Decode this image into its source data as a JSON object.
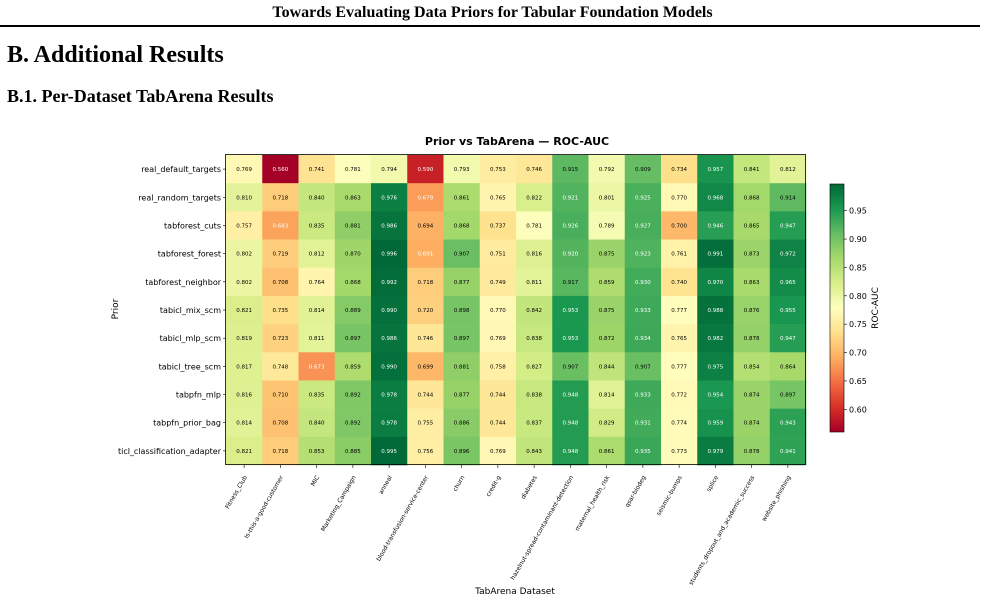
{
  "page": {
    "running_header": "Towards Evaluating Data Priors for Tabular Foundation Models",
    "section_title": "B. Additional Results",
    "subsection_title": "B.1. Per-Dataset TabArena Results"
  },
  "chart_data": {
    "type": "heatmap",
    "title": "Prior vs TabArena — ROC-AUC",
    "xlabel": "TabArena Dataset",
    "ylabel": "Prior",
    "colorbar_label": "ROC-AUC",
    "colormap": "RdYlGn",
    "vmin": 0.56,
    "vmax": 0.997,
    "colorbar_ticks": [
      "0.60",
      "0.65",
      "0.70",
      "0.75",
      "0.80",
      "0.85",
      "0.90",
      "0.95"
    ],
    "rows": [
      "real_default_targets",
      "real_random_targets",
      "tabforest_cuts",
      "tabforest_forest",
      "tabforest_neighbor",
      "tabicl_mix_scm",
      "tabicl_mlp_scm",
      "tabicl_tree_scm",
      "tabpfn_mlp",
      "tabpfn_prior_bag",
      "ticl_classification_adapter"
    ],
    "columns": [
      "Fitness_Club",
      "Is-this-a-good-customer",
      "MIC",
      "Marketing_Campaign",
      "anneal",
      "blood-transfusion-service-center",
      "churn",
      "credit-g",
      "diabetes",
      "hazelnut-spread-contaminant-detection",
      "maternal_health_risk",
      "qsar-biodeg",
      "seismic-bumps",
      "splice",
      "students_dropout_and_academic_success",
      "website_phishing"
    ],
    "values": [
      [
        "0.769",
        "0.560",
        "0.741",
        "0.781",
        "0.794",
        "0.590",
        "0.793",
        "0.753",
        "0.746",
        "0.915",
        "0.792",
        "0.909",
        "0.734",
        "0.957",
        "0.841",
        "0.812"
      ],
      [
        "0.810",
        "0.718",
        "0.840",
        "0.863",
        "0.976",
        "0.679",
        "0.861",
        "0.765",
        "0.822",
        "0.921",
        "0.801",
        "0.925",
        "0.770",
        "0.968",
        "0.868",
        "0.914"
      ],
      [
        "0.757",
        "0.683",
        "0.835",
        "0.881",
        "0.986",
        "0.694",
        "0.868",
        "0.737",
        "0.781",
        "0.926",
        "0.789",
        "0.927",
        "0.700",
        "0.946",
        "0.865",
        "0.947"
      ],
      [
        "0.802",
        "0.719",
        "0.812",
        "0.870",
        "0.996",
        "0.691",
        "0.907",
        "0.751",
        "0.816",
        "0.920",
        "0.875",
        "0.923",
        "0.761",
        "0.991",
        "0.873",
        "0.972"
      ],
      [
        "0.802",
        "0.708",
        "0.764",
        "0.868",
        "0.992",
        "0.718",
        "0.877",
        "0.749",
        "0.811",
        "0.917",
        "0.859",
        "0.930",
        "0.740",
        "0.970",
        "0.863",
        "0.965"
      ],
      [
        "0.821",
        "0.735",
        "0.814",
        "0.889",
        "0.990",
        "0.720",
        "0.898",
        "0.770",
        "0.842",
        "0.953",
        "0.875",
        "0.933",
        "0.777",
        "0.988",
        "0.876",
        "0.955"
      ],
      [
        "0.819",
        "0.723",
        "0.811",
        "0.897",
        "0.986",
        "0.746",
        "0.897",
        "0.769",
        "0.838",
        "0.953",
        "0.872",
        "0.934",
        "0.765",
        "0.982",
        "0.878",
        "0.947"
      ],
      [
        "0.817",
        "0.748",
        "0.673",
        "0.859",
        "0.990",
        "0.699",
        "0.881",
        "0.758",
        "0.827",
        "0.907",
        "0.844",
        "0.907",
        "0.777",
        "0.975",
        "0.854",
        "0.864"
      ],
      [
        "0.816",
        "0.710",
        "0.835",
        "0.892",
        "0.978",
        "0.744",
        "0.877",
        "0.744",
        "0.838",
        "0.948",
        "0.814",
        "0.933",
        "0.772",
        "0.954",
        "0.874",
        "0.897"
      ],
      [
        "0.814",
        "0.708",
        "0.840",
        "0.892",
        "0.978",
        "0.755",
        "0.886",
        "0.744",
        "0.837",
        "0.948",
        "0.829",
        "0.931",
        "0.774",
        "0.959",
        "0.874",
        "0.943"
      ],
      [
        "0.821",
        "0.718",
        "0.853",
        "0.885",
        "0.995",
        "0.756",
        "0.896",
        "0.769",
        "0.843",
        "0.948",
        "0.861",
        "0.935",
        "0.773",
        "0.979",
        "0.878",
        "0.941"
      ]
    ]
  }
}
